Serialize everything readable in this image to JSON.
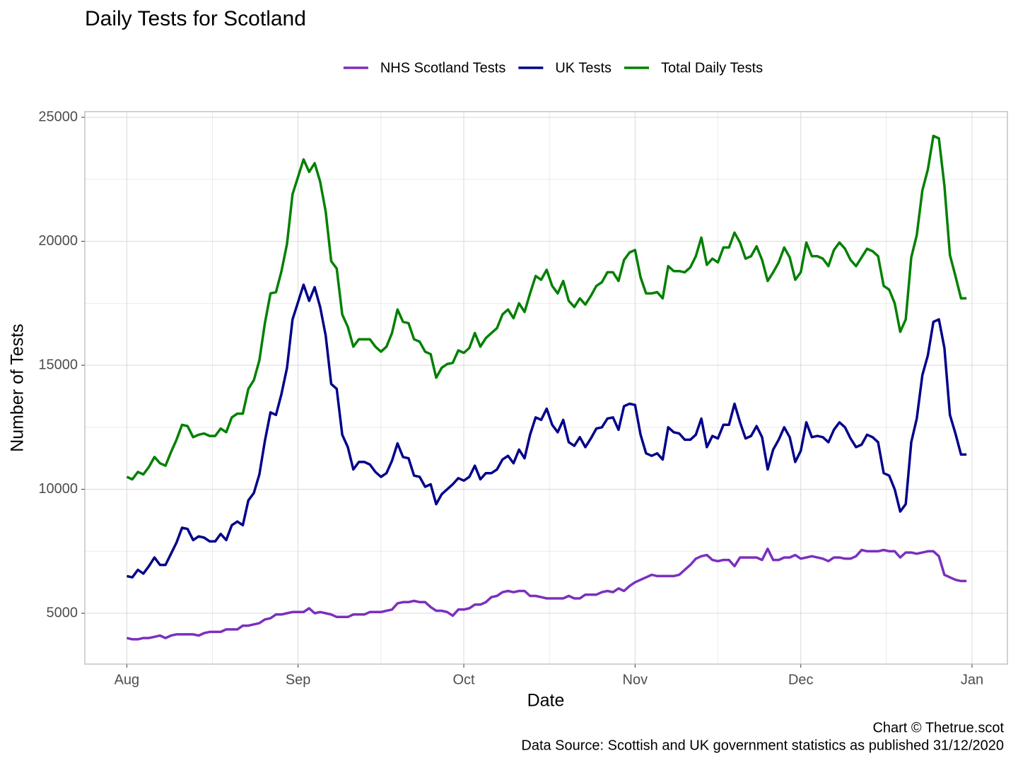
{
  "chart_data": {
    "type": "line",
    "title": "Daily Tests for Scotland",
    "x_label": "Date",
    "y_label": "Number of Tests",
    "caption": [
      "Chart © Thetrue.scot",
      "Data Source: Scottish and UK government statistics as published 31/12/2020"
    ],
    "legend": "top",
    "grid": true,
    "xlim": [
      -7.6,
      159.4
    ],
    "xticks": [
      {
        "value": 0,
        "label": "Aug"
      },
      {
        "value": 31,
        "label": "Sep"
      },
      {
        "value": 61,
        "label": "Oct"
      },
      {
        "value": 92,
        "label": "Nov"
      },
      {
        "value": 122,
        "label": "Dec"
      },
      {
        "value": 153,
        "label": "Jan"
      }
    ],
    "ylim": [
      2950,
      25230
    ],
    "yticks": [
      5000,
      10000,
      15000,
      20000,
      25000
    ],
    "x": [
      0,
      1,
      2,
      3,
      4,
      5,
      6,
      7,
      8,
      9,
      10,
      11,
      12,
      13,
      14,
      15,
      16,
      17,
      18,
      19,
      20,
      21,
      22,
      23,
      24,
      25,
      26,
      27,
      28,
      29,
      30,
      31,
      32,
      33,
      34,
      35,
      36,
      37,
      38,
      39,
      40,
      41,
      42,
      43,
      44,
      45,
      46,
      47,
      48,
      49,
      50,
      51,
      52,
      53,
      54,
      55,
      56,
      57,
      58,
      59,
      60,
      61,
      62,
      63,
      64,
      65,
      66,
      67,
      68,
      69,
      70,
      71,
      72,
      73,
      74,
      75,
      76,
      77,
      78,
      79,
      80,
      81,
      82,
      83,
      84,
      85,
      86,
      87,
      88,
      89,
      90,
      91,
      92,
      93,
      94,
      95,
      96,
      97,
      98,
      99,
      100,
      101,
      102,
      103,
      104,
      105,
      106,
      107,
      108,
      109,
      110,
      111,
      112,
      113,
      114,
      115,
      116,
      117,
      118,
      119,
      120,
      121,
      122,
      123,
      124,
      125,
      126,
      127,
      128,
      129,
      130,
      131,
      132,
      133,
      134,
      135,
      136,
      137,
      138,
      139,
      140,
      141,
      142,
      143,
      144,
      145,
      146,
      147,
      148,
      149,
      150,
      151,
      152
    ],
    "series": [
      {
        "name": "NHS Scotland Tests",
        "color": "#7b2fbe",
        "values": [
          4000,
          3950,
          3950,
          4000,
          4000,
          4050,
          4100,
          4000,
          4100,
          4150,
          4150,
          4150,
          4150,
          4100,
          4200,
          4250,
          4250,
          4250,
          4350,
          4350,
          4350,
          4500,
          4500,
          4550,
          4600,
          4750,
          4800,
          4950,
          4950,
          5000,
          5050,
          5050,
          5050,
          5200,
          5000,
          5050,
          5000,
          4950,
          4850,
          4850,
          4850,
          4950,
          4950,
          4950,
          5050,
          5050,
          5050,
          5100,
          5150,
          5400,
          5450,
          5450,
          5500,
          5450,
          5450,
          5250,
          5100,
          5100,
          5050,
          4900,
          5150,
          5150,
          5200,
          5350,
          5350,
          5450,
          5650,
          5700,
          5850,
          5900,
          5850,
          5900,
          5900,
          5700,
          5700,
          5650,
          5600,
          5600,
          5600,
          5600,
          5700,
          5600,
          5600,
          5750,
          5750,
          5750,
          5850,
          5900,
          5850,
          6000,
          5900,
          6100,
          6250,
          6350,
          6450,
          6550,
          6500,
          6500,
          6500,
          6500,
          6550,
          6750,
          6950,
          7200,
          7300,
          7350,
          7150,
          7100,
          7150,
          7150,
          6900,
          7250,
          7250,
          7250,
          7250,
          7150,
          7600,
          7150,
          7150,
          7250,
          7250,
          7350,
          7200,
          7250,
          7300,
          7250,
          7200,
          7100,
          7250,
          7250,
          7200,
          7200,
          7300,
          7550,
          7500,
          7500,
          7500,
          7550,
          7500,
          7500,
          7250,
          7450,
          7450,
          7400,
          7450,
          7500,
          7500,
          7300,
          6550,
          6450,
          6350,
          6300,
          6300
        ]
      },
      {
        "name": "UK Tests",
        "color": "#00008b",
        "values": [
          6500,
          6450,
          6750,
          6600,
          6900,
          7250,
          6950,
          6950,
          7400,
          7850,
          8450,
          8400,
          7950,
          8100,
          8050,
          7900,
          7900,
          8200,
          7950,
          8550,
          8700,
          8550,
          9550,
          9850,
          10600,
          11950,
          13100,
          13000,
          13850,
          14900,
          16850,
          17550,
          18250,
          17600,
          18150,
          17350,
          16200,
          14250,
          14050,
          12200,
          11700,
          10800,
          11100,
          11100,
          11000,
          10700,
          10500,
          10650,
          11150,
          11850,
          11300,
          11250,
          10550,
          10500,
          10100,
          10200,
          9400,
          9800,
          10000,
          10200,
          10450,
          10350,
          10500,
          10950,
          10400,
          10650,
          10650,
          10800,
          11200,
          11350,
          11050,
          11600,
          11250,
          12200,
          12900,
          12800,
          13250,
          12600,
          12300,
          12800,
          11900,
          11750,
          12100,
          11700,
          12050,
          12450,
          12500,
          12850,
          12900,
          12400,
          13350,
          13450,
          13400,
          12200,
          11450,
          11350,
          11450,
          11200,
          12500,
          12300,
          12250,
          12000,
          12000,
          12200,
          12850,
          11700,
          12150,
          12050,
          12600,
          12600,
          13450,
          12700,
          12050,
          12150,
          12550,
          12100,
          10800,
          11600,
          12000,
          12500,
          12100,
          11100,
          11550,
          12700,
          12100,
          12150,
          12100,
          11900,
          12400,
          12700,
          12500,
          12050,
          11700,
          11800,
          12200,
          12100,
          11900,
          10650,
          10550,
          10000,
          9100,
          9400,
          11900,
          12850,
          14600,
          15400,
          16750,
          16850,
          15700,
          13000,
          12250,
          11400,
          11400
        ]
      },
      {
        "name": "Total Daily Tests",
        "color": "#008000",
        "values": [
          10500,
          10400,
          10700,
          10600,
          10900,
          11300,
          11050,
          10950,
          11500,
          12000,
          12600,
          12550,
          12100,
          12200,
          12250,
          12150,
          12150,
          12450,
          12300,
          12900,
          13050,
          13050,
          14050,
          14400,
          15200,
          16700,
          17900,
          17950,
          18800,
          19900,
          21900,
          22600,
          23300,
          22800,
          23150,
          22400,
          21200,
          19200,
          18900,
          17050,
          16550,
          15750,
          16050,
          16050,
          16050,
          15750,
          15550,
          15750,
          16300,
          17250,
          16750,
          16700,
          16050,
          15950,
          15550,
          15450,
          14500,
          14900,
          15050,
          15100,
          15600,
          15500,
          15700,
          16300,
          15750,
          16100,
          16300,
          16500,
          17050,
          17250,
          16900,
          17500,
          17150,
          17900,
          18600,
          18450,
          18850,
          18200,
          17900,
          18400,
          17600,
          17350,
          17700,
          17450,
          17800,
          18200,
          18350,
          18750,
          18750,
          18400,
          19250,
          19550,
          19650,
          18550,
          17900,
          17900,
          17950,
          17700,
          19000,
          18800,
          18800,
          18750,
          18950,
          19400,
          20150,
          19050,
          19300,
          19150,
          19750,
          19750,
          20350,
          19950,
          19300,
          19400,
          19800,
          19250,
          18400,
          18750,
          19150,
          19750,
          19350,
          18450,
          18750,
          19950,
          19400,
          19400,
          19300,
          19000,
          19650,
          19950,
          19700,
          19250,
          19000,
          19350,
          19700,
          19600,
          19400,
          18200,
          18050,
          17500,
          16350,
          16850,
          19350,
          20250,
          22050,
          22900,
          24250,
          24150,
          22250,
          19450,
          18600,
          17700,
          17700
        ]
      }
    ]
  }
}
